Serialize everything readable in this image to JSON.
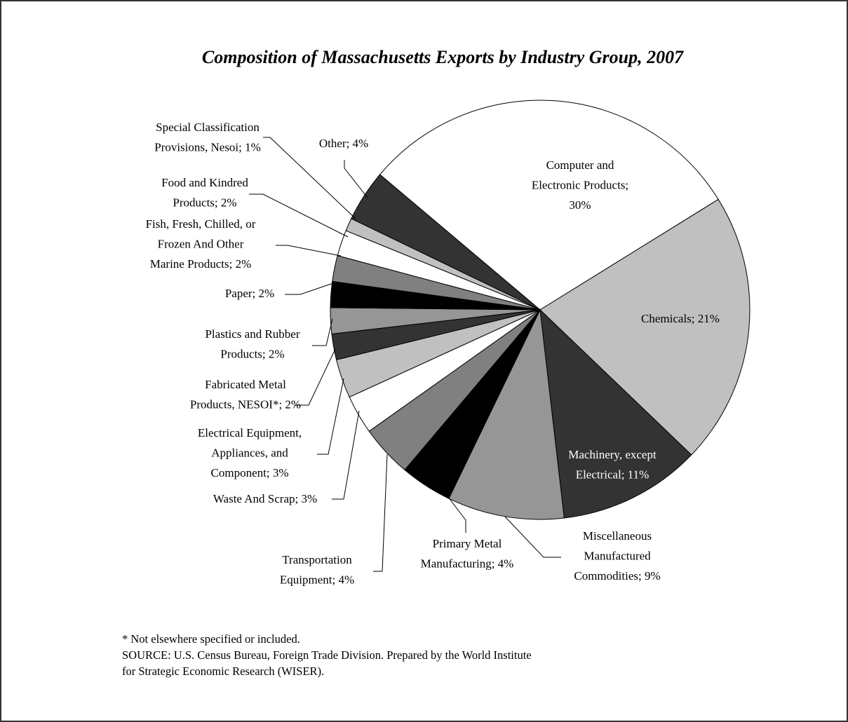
{
  "chart_data": {
    "type": "pie",
    "title": "Composition of Massachusetts Exports by Industry Group, 2007",
    "labels": [
      [
        "Computer and",
        "Electronic Products;",
        "30%"
      ],
      [
        "Chemicals; 21%"
      ],
      [
        "Machinery, except",
        "Electrical; 11%"
      ],
      [
        "Miscellaneous",
        "Manufactured",
        "Commodities; 9%"
      ],
      [
        "Primary Metal",
        "Manufacturing; 4%"
      ],
      [
        "Transportation",
        "Equipment; 4%"
      ],
      [
        "Waste And Scrap; 3%"
      ],
      [
        "Electrical Equipment,",
        "Appliances, and",
        "Component; 3%"
      ],
      [
        "Fabricated Metal",
        "Products, NESOI*; 2%"
      ],
      [
        "Plastics and Rubber",
        "Products; 2%"
      ],
      [
        "Paper; 2%"
      ],
      [
        "Fish, Fresh, Chilled, or",
        "Frozen And Other",
        "Marine Products; 2%"
      ],
      [
        "Food and Kindred",
        "Products; 2%"
      ],
      [
        "Special Classification",
        "Provisions, Nesoi; 1%"
      ],
      [
        "Other; 4%"
      ]
    ],
    "values": [
      30,
      21,
      11,
      9,
      4,
      4,
      3,
      3,
      2,
      2,
      2,
      2,
      2,
      1,
      4
    ],
    "colors": [
      "#ffffff",
      "#c0c0c0",
      "#333333",
      "#969696",
      "#000000",
      "#808080",
      "#ffffff",
      "#c0c0c0",
      "#333333",
      "#969696",
      "#000000",
      "#808080",
      "#ffffff",
      "#c0c0c0",
      "#333333"
    ],
    "notes": [
      "* Not elsewhere specified or included.",
      "SOURCE:  U.S. Census Bureau, Foreign Trade Division.  Prepared by the World Institute",
      "for Strategic Economic Research (WISER)."
    ]
  }
}
